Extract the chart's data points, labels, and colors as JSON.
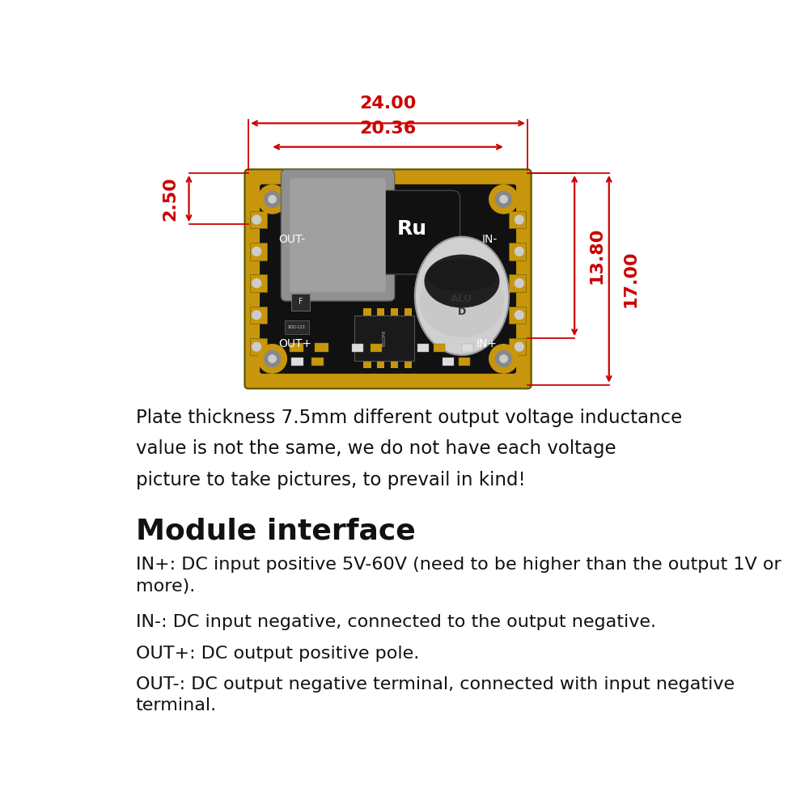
{
  "bg_color": "#ffffff",
  "dim_color": "#cc0000",
  "text_color": "#111111",
  "paragraph1": "Plate thickness 7.5mm different output voltage inductance\nvalue is not the same, we do not have each voltage\npicture to take pictures, to prevail in kind!",
  "section_title": "Module interface",
  "lines": [
    "IN+: DC input positive 5V-60V (need to be higher than the output 1V or\nmore).",
    "IN-: DC input negative, connected to the output negative.",
    "OUT+: DC output positive pole.",
    "OUT-: DC output negative terminal, connected with input negative\nterminal."
  ],
  "board": {
    "bx": 0.235,
    "by": 0.538,
    "bw": 0.445,
    "bh": 0.34,
    "black": "#111111",
    "yellow": "#c8960c",
    "yellow2": "#b8850b"
  },
  "dim_lw": 1.6,
  "dim_fs": 16
}
